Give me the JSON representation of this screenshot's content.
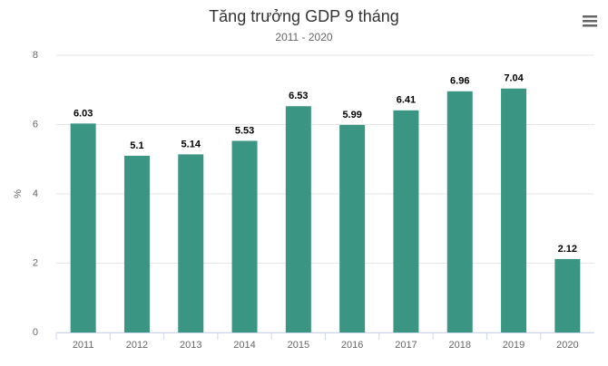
{
  "chart_data": {
    "type": "bar",
    "title": "Tăng trưởng GDP 9 tháng",
    "subtitle": "2011 - 2020",
    "y_label": "%",
    "categories": [
      "2011",
      "2012",
      "2013",
      "2014",
      "2015",
      "2016",
      "2017",
      "2018",
      "2019",
      "2020"
    ],
    "values": [
      6.03,
      5.1,
      5.14,
      5.53,
      6.53,
      5.99,
      6.41,
      6.96,
      7.04,
      2.12
    ],
    "color": "#3a9682",
    "ylim": [
      0,
      8
    ],
    "yticks": [
      0,
      2,
      4,
      6,
      8
    ],
    "grid": true
  }
}
